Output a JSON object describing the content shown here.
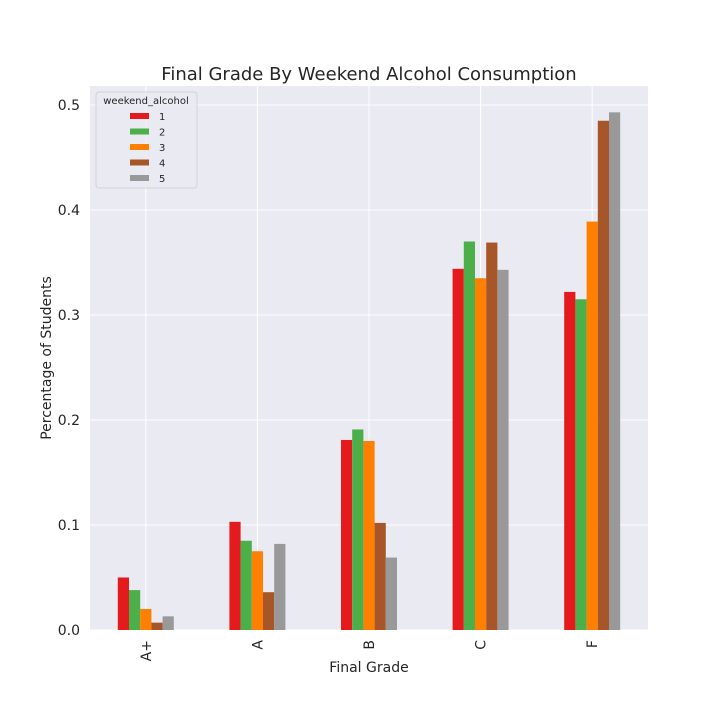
{
  "chart_data": {
    "type": "bar",
    "title": "Final Grade By Weekend Alcohol Consumption",
    "xlabel": "Final Grade",
    "ylabel": "Percentage of Students",
    "categories": [
      "A+",
      "A",
      "B",
      "C",
      "F"
    ],
    "ylim": [
      0,
      0.52
    ],
    "yticks": [
      "0.0",
      "0.1",
      "0.2",
      "0.3",
      "0.4",
      "0.5"
    ],
    "grid": true,
    "legend_title": "weekend_alcohol",
    "legend_position": "top-left",
    "series": [
      {
        "name": "1",
        "color": "#e41a1c",
        "values": [
          0.05,
          0.103,
          0.181,
          0.344,
          0.322
        ]
      },
      {
        "name": "2",
        "color": "#4daf4a",
        "values": [
          0.038,
          0.085,
          0.191,
          0.37,
          0.315
        ]
      },
      {
        "name": "3",
        "color": "#ff7f00",
        "values": [
          0.02,
          0.075,
          0.18,
          0.335,
          0.389
        ]
      },
      {
        "name": "4",
        "color": "#a65628",
        "values": [
          0.007,
          0.036,
          0.102,
          0.369,
          0.485
        ]
      },
      {
        "name": "5",
        "color": "#999999",
        "values": [
          0.013,
          0.082,
          0.069,
          0.343,
          0.493
        ]
      }
    ]
  }
}
